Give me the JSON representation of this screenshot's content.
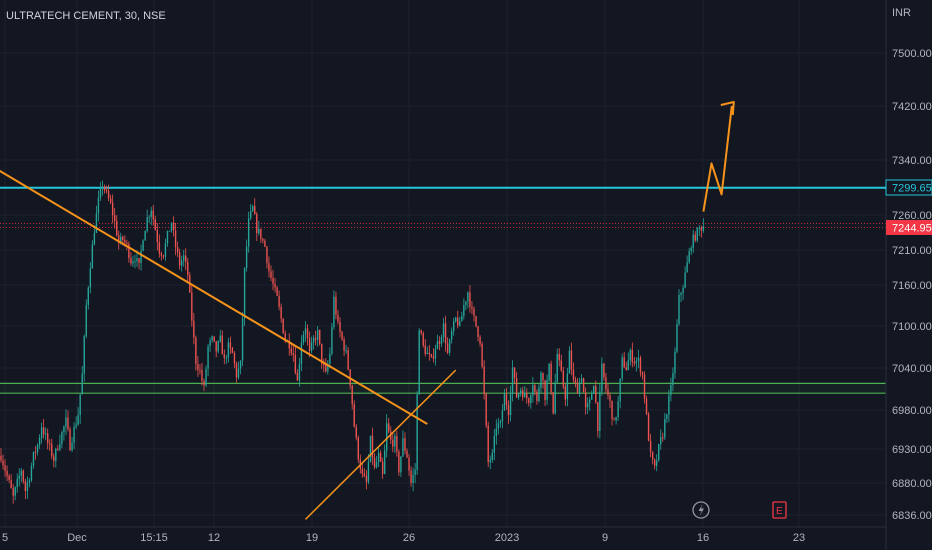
{
  "chart_data": {
    "type": "candlestick",
    "title": "ULTRATECH CEMENT, 30, NSE",
    "currency": "INR",
    "y_ticks": [
      "7500.00",
      "7420.00",
      "7340.00",
      "7260.00",
      "7210.00",
      "7160.00",
      "7100.00",
      "7040.00",
      "6980.00",
      "6930.00",
      "6880.00",
      "6836.00"
    ],
    "x_ticks": [
      "5",
      "Dec",
      "15:15",
      "12",
      "19",
      "26",
      "2023",
      "9",
      "16",
      "23"
    ],
    "price_levels": {
      "resistance": "7299.65",
      "last_price": "7244.95"
    },
    "support_zone": [
      7018,
      7004
    ],
    "series_path": [
      [
        0,
        6920
      ],
      [
        2,
        6900
      ],
      [
        4,
        6880
      ],
      [
        6,
        6860
      ],
      [
        8,
        6880
      ],
      [
        10,
        6900
      ],
      [
        12,
        6870
      ],
      [
        14,
        6890
      ],
      [
        16,
        6920
      ],
      [
        18,
        6935
      ],
      [
        20,
        6960
      ],
      [
        22,
        6945
      ],
      [
        24,
        6930
      ],
      [
        26,
        6915
      ],
      [
        28,
        6935
      ],
      [
        30,
        6950
      ],
      [
        32,
        6965
      ],
      [
        34,
        6935
      ],
      [
        36,
        6955
      ],
      [
        38,
        6975
      ],
      [
        40,
        7030
      ],
      [
        42,
        7130
      ],
      [
        44,
        7190
      ],
      [
        46,
        7240
      ],
      [
        48,
        7280
      ],
      [
        50,
        7305
      ],
      [
        52,
        7290
      ],
      [
        54,
        7275
      ],
      [
        56,
        7250
      ],
      [
        58,
        7220
      ],
      [
        60,
        7225
      ],
      [
        62,
        7215
      ],
      [
        64,
        7195
      ],
      [
        66,
        7200
      ],
      [
        68,
        7185
      ],
      [
        70,
        7230
      ],
      [
        72,
        7255
      ],
      [
        74,
        7270
      ],
      [
        76,
        7240
      ],
      [
        78,
        7210
      ],
      [
        80,
        7205
      ],
      [
        82,
        7230
      ],
      [
        84,
        7250
      ],
      [
        86,
        7215
      ],
      [
        88,
        7190
      ],
      [
        90,
        7200
      ],
      [
        92,
        7175
      ],
      [
        94,
        7110
      ],
      [
        96,
        7050
      ],
      [
        98,
        7035
      ],
      [
        100,
        7010
      ],
      [
        102,
        7070
      ],
      [
        104,
        7080
      ],
      [
        106,
        7065
      ],
      [
        108,
        7080
      ],
      [
        110,
        7050
      ],
      [
        112,
        7070
      ],
      [
        114,
        7060
      ],
      [
        116,
        7030
      ],
      [
        118,
        7045
      ],
      [
        120,
        7180
      ],
      [
        122,
        7250
      ],
      [
        124,
        7270
      ],
      [
        126,
        7240
      ],
      [
        128,
        7230
      ],
      [
        130,
        7215
      ],
      [
        132,
        7180
      ],
      [
        134,
        7160
      ],
      [
        136,
        7140
      ],
      [
        138,
        7110
      ],
      [
        140,
        7080
      ],
      [
        142,
        7075
      ],
      [
        144,
        7060
      ],
      [
        146,
        7020
      ],
      [
        148,
        7080
      ],
      [
        150,
        7100
      ],
      [
        152,
        7060
      ],
      [
        154,
        7080
      ],
      [
        156,
        7090
      ],
      [
        158,
        7050
      ],
      [
        160,
        7030
      ],
      [
        162,
        7060
      ],
      [
        164,
        7140
      ],
      [
        166,
        7100
      ],
      [
        168,
        7080
      ],
      [
        170,
        7060
      ],
      [
        172,
        7020
      ],
      [
        174,
        6960
      ],
      [
        176,
        6920
      ],
      [
        178,
        6890
      ],
      [
        180,
        6880
      ],
      [
        182,
        6940
      ],
      [
        184,
        6900
      ],
      [
        186,
        6920
      ],
      [
        188,
        6890
      ],
      [
        190,
        6960
      ],
      [
        192,
        6940
      ],
      [
        194,
        6940
      ],
      [
        196,
        6900
      ],
      [
        198,
        6940
      ],
      [
        200,
        6920
      ],
      [
        202,
        6880
      ],
      [
        204,
        6900
      ],
      [
        206,
        7100
      ],
      [
        208,
        7070
      ],
      [
        210,
        7060
      ],
      [
        212,
        7050
      ],
      [
        214,
        7070
      ],
      [
        216,
        7080
      ],
      [
        218,
        7100
      ],
      [
        220,
        7060
      ],
      [
        222,
        7090
      ],
      [
        224,
        7110
      ],
      [
        226,
        7100
      ],
      [
        228,
        7130
      ],
      [
        230,
        7150
      ],
      [
        232,
        7120
      ],
      [
        234,
        7100
      ],
      [
        236,
        7080
      ],
      [
        238,
        7000
      ],
      [
        240,
        6910
      ],
      [
        242,
        6920
      ],
      [
        244,
        6960
      ],
      [
        246,
        6960
      ],
      [
        248,
        7000
      ],
      [
        250,
        6980
      ],
      [
        252,
        7040
      ],
      [
        254,
        7000
      ],
      [
        256,
        7010
      ],
      [
        258,
        7000
      ],
      [
        260,
        6995
      ],
      [
        262,
        7020
      ],
      [
        264,
        6990
      ],
      [
        266,
        7040
      ],
      [
        268,
        7000
      ],
      [
        270,
        7040
      ],
      [
        272,
        6980
      ],
      [
        274,
        7060
      ],
      [
        276,
        7030
      ],
      [
        278,
        7000
      ],
      [
        280,
        7060
      ],
      [
        282,
        7020
      ],
      [
        284,
        7010
      ],
      [
        286,
        7030
      ],
      [
        288,
        6980
      ],
      [
        290,
        6990
      ],
      [
        292,
        7020
      ],
      [
        294,
        6960
      ],
      [
        296,
        7040
      ],
      [
        298,
        7010
      ],
      [
        300,
        6990
      ],
      [
        302,
        6960
      ],
      [
        304,
        6990
      ],
      [
        306,
        7050
      ],
      [
        308,
        7040
      ],
      [
        310,
        7060
      ],
      [
        312,
        7050
      ],
      [
        314,
        7050
      ],
      [
        316,
        7030
      ],
      [
        318,
        6970
      ],
      [
        320,
        6920
      ],
      [
        322,
        6900
      ],
      [
        324,
        6930
      ],
      [
        326,
        6950
      ],
      [
        328,
        6980
      ],
      [
        330,
        7010
      ],
      [
        332,
        7060
      ],
      [
        334,
        7140
      ],
      [
        336,
        7160
      ],
      [
        338,
        7190
      ],
      [
        340,
        7220
      ],
      [
        342,
        7230
      ],
      [
        344,
        7240
      ],
      [
        346,
        7244.95
      ]
    ],
    "trendlines": [
      {
        "kind": "descending",
        "from": [
          -4,
          7330
        ],
        "to": [
          210,
          6962
        ]
      },
      {
        "kind": "ascending",
        "from": [
          150,
          6830
        ],
        "to": [
          224,
          7037
        ]
      }
    ],
    "projection": [
      [
        346,
        7265
      ],
      [
        350,
        7335
      ],
      [
        355,
        7290
      ],
      [
        360,
        7420
      ]
    ]
  }
}
